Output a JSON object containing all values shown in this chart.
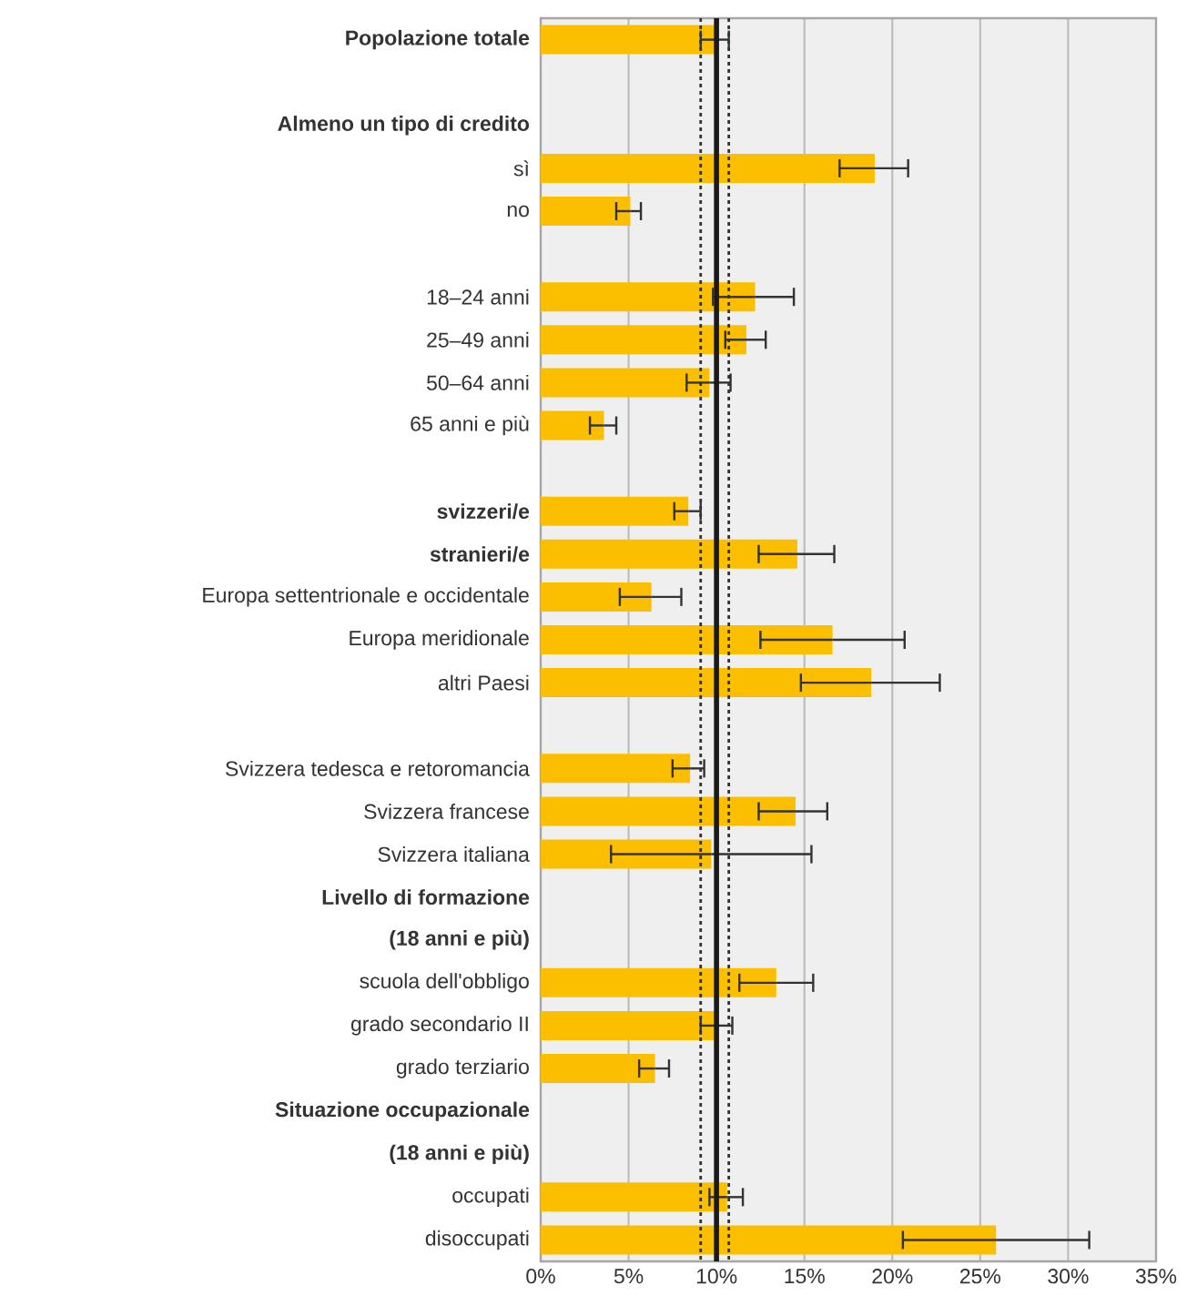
{
  "chart_data": {
    "type": "bar",
    "orientation": "horizontal",
    "color": "#fcbf00",
    "categories": [
      "**Popolazione totale**",
      null,
      "**Almeno un tipo di credito**",
      "sì",
      "no",
      null,
      "18–24 anni",
      "25–49 anni",
      "50–64 anni",
      "65 anni e più",
      null,
      "**svizzeri/e**",
      "**stranieri/e**",
      "Europa settentrionale e occidentale",
      "Europa meridionale",
      "altri Paesi",
      null,
      "Svizzera tedesca e retoromancia",
      "Svizzera francese",
      "Svizzera italiana",
      "**Livello di formazione**",
      "**(18 anni e più)**",
      "scuola dell'obbligo",
      "grado secondario II",
      "grado terziario",
      "**Situazione occupazionale**",
      "**(18 anni e più)**",
      "occupati",
      "disoccupati"
    ],
    "values": [
      10.0,
      null,
      null,
      19.0,
      5.1,
      null,
      12.2,
      11.7,
      9.6,
      3.6,
      null,
      8.4,
      14.6,
      6.3,
      16.6,
      18.8,
      null,
      8.5,
      14.5,
      9.7,
      null,
      null,
      13.4,
      10.0,
      6.5,
      null,
      null,
      10.6,
      25.9
    ],
    "errors": [
      [
        9.1,
        10.7
      ],
      null,
      null,
      [
        17.0,
        20.9
      ],
      [
        4.3,
        5.7
      ],
      null,
      [
        9.8,
        14.4
      ],
      [
        10.5,
        12.8
      ],
      [
        8.3,
        10.8
      ],
      [
        2.8,
        4.3
      ],
      null,
      [
        7.6,
        9.1
      ],
      [
        12.4,
        16.7
      ],
      [
        4.5,
        8.0
      ],
      [
        12.5,
        20.7
      ],
      [
        14.8,
        22.7
      ],
      null,
      [
        7.5,
        9.3
      ],
      [
        12.4,
        16.3
      ],
      [
        4.0,
        15.4
      ],
      null,
      null,
      [
        11.3,
        15.5
      ],
      [
        9.1,
        10.9
      ],
      [
        5.6,
        7.3
      ],
      null,
      null,
      [
        9.6,
        11.5
      ],
      [
        20.6,
        31.2
      ]
    ],
    "xlim": [
      0,
      35
    ],
    "xticks": [
      {
        "value": 0,
        "label": "0%"
      },
      {
        "value": 5,
        "label": "5%"
      },
      {
        "value": 10,
        "label": "10%"
      },
      {
        "value": 15,
        "label": "15%"
      },
      {
        "value": 20,
        "label": "20%"
      },
      {
        "value": 25,
        "label": "25%"
      },
      {
        "value": 30,
        "label": "30%"
      },
      {
        "value": 35,
        "label": "35%"
      }
    ],
    "grid": "x",
    "ref_lines": [
      {
        "axis": "x",
        "value": 10,
        "line_style": "solid",
        "color": "#1a1a1a"
      },
      {
        "axis": "x",
        "value": 9.1,
        "line_style": "dotted",
        "color": "#333333"
      },
      {
        "axis": "x",
        "value": 10.7,
        "line_style": "dotted",
        "color": "#333333"
      }
    ]
  }
}
